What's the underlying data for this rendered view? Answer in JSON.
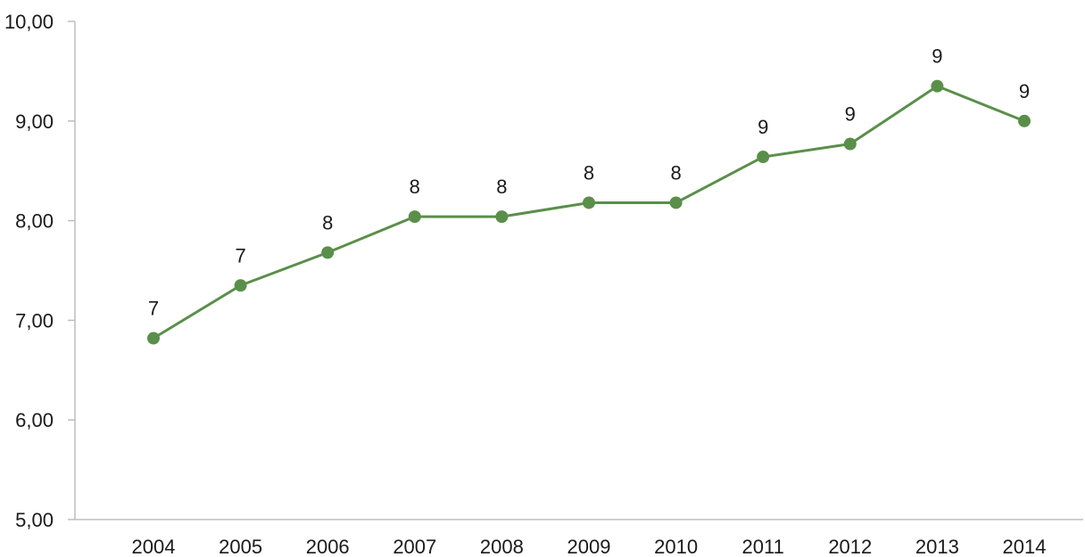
{
  "chart_data": {
    "type": "line",
    "title": "",
    "xlabel": "",
    "ylabel": "",
    "ylim": [
      5,
      10
    ],
    "y_ticks": [
      "5,00",
      "6,00",
      "7,00",
      "8,00",
      "9,00",
      "10,00"
    ],
    "y_tick_values": [
      5,
      6,
      7,
      8,
      9,
      10
    ],
    "categories": [
      "2004",
      "2005",
      "2006",
      "2007",
      "2008",
      "2009",
      "2010",
      "2011",
      "2012",
      "2013",
      "2014"
    ],
    "series": [
      {
        "values": [
          6.82,
          7.35,
          7.68,
          8.04,
          8.04,
          8.18,
          8.18,
          8.64,
          8.77,
          9.35,
          9.0
        ],
        "data_labels": [
          "7",
          "7",
          "8",
          "8",
          "8",
          "8",
          "8",
          "9",
          "9",
          "9",
          "9"
        ],
        "color": "#5a8f4a"
      }
    ],
    "grid": false,
    "legend": "none"
  }
}
